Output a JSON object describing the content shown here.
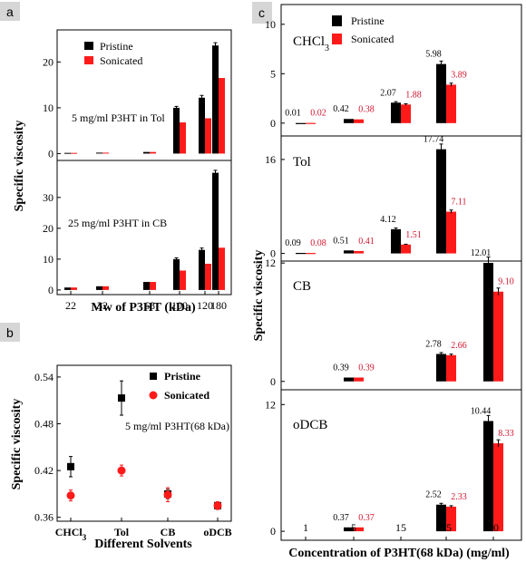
{
  "colors": {
    "pristine": "#000000",
    "sonicated": "#ff1a1a",
    "sonicated_label": "#d0142c",
    "badge_bg": "#d6d6d6"
  },
  "legend": {
    "pristine": "Pristine",
    "sonicated": "Sonicated"
  },
  "chart_data": [
    {
      "panel": "a",
      "type": "bar",
      "ylabel": "Specific viscosity",
      "xlabel": "Mw of P3HT (kDa)",
      "categories": [
        "22",
        "32",
        "68",
        "100",
        "120",
        "180"
      ],
      "subplots": [
        {
          "annotation": "5 mg/ml P3HT in Tol",
          "yticks": [
            "0",
            "10",
            "20"
          ],
          "ylim": [
            -1.5,
            27
          ],
          "series": [
            {
              "name": "Pristine",
              "values": [
                0.15,
                0.2,
                0.35,
                10,
                12.2,
                23.6
              ],
              "errors": [
                0,
                0,
                0,
                0.3,
                0.5,
                0.6
              ]
            },
            {
              "name": "Sonicated",
              "values": [
                0.15,
                0.2,
                0.35,
                6.8,
                7.7,
                16.5
              ],
              "errors": [
                0,
                0,
                0,
                0,
                0,
                0
              ]
            }
          ]
        },
        {
          "annotation": "25 mg/ml P3HT in CB",
          "yticks": [
            "0",
            "10",
            "20",
            "30"
          ],
          "ylim": [
            -1.5,
            42
          ],
          "series": [
            {
              "name": "Pristine",
              "values": [
                0.8,
                1.2,
                2.6,
                10,
                13,
                38
              ],
              "errors": [
                0,
                0,
                0,
                0.4,
                0.6,
                0.8
              ]
            },
            {
              "name": "Sonicated",
              "values": [
                0.8,
                1.2,
                2.6,
                6.3,
                8.5,
                13.7
              ],
              "errors": [
                0,
                0,
                0,
                0,
                0,
                0
              ]
            }
          ]
        }
      ]
    },
    {
      "panel": "b",
      "type": "scatter",
      "ylabel": "Specific viscosity",
      "xlabel": "Different Solvents",
      "annotation": "5 mg/ml P3HT(68 kDa)",
      "categories": [
        "CHCl3",
        "Tol",
        "CB",
        "oDCB"
      ],
      "yticks": [
        "0.36",
        "0.42",
        "0.48",
        "0.54"
      ],
      "ylim": [
        0.355,
        0.555
      ],
      "series": [
        {
          "name": "Pristine",
          "values": [
            0.425,
            0.513,
            0.39,
            0.375
          ],
          "errors": [
            0.013,
            0.022,
            0.006,
            0.004
          ]
        },
        {
          "name": "Sonicated",
          "values": [
            0.388,
            0.42,
            0.389,
            0.375
          ],
          "errors": [
            0.007,
            0.007,
            0.009,
            0.005
          ]
        }
      ]
    },
    {
      "panel": "c",
      "type": "bar",
      "ylabel": "Specific viscosity",
      "xlabel": "Concentration of P3HT(68 kDa) (mg/ml)",
      "categories": [
        "1",
        "5",
        "15",
        "25",
        "50"
      ],
      "subplots": [
        {
          "solvent": "CHCl3",
          "yticks": [
            "0",
            "5",
            "10"
          ],
          "ylim": [
            -1.3,
            12
          ],
          "series": [
            {
              "name": "Pristine",
              "values": [
                0.01,
                0.42,
                2.07,
                5.98,
                null
              ],
              "labels": [
                "0.01",
                "0.42",
                "2.07",
                "5.98",
                ""
              ]
            },
            {
              "name": "Sonicated",
              "values": [
                0.02,
                0.38,
                1.88,
                3.89,
                null
              ],
              "labels": [
                "0.02",
                "0.38",
                "1.88",
                "3.89",
                ""
              ]
            }
          ]
        },
        {
          "solvent": "Tol",
          "yticks": [
            "0",
            "16"
          ],
          "ylim": [
            -1.3,
            20
          ],
          "series": [
            {
              "name": "Pristine",
              "values": [
                0.09,
                0.51,
                4.12,
                17.74,
                null
              ],
              "labels": [
                "0.09",
                "0.51",
                "4.12",
                "17.74",
                ""
              ]
            },
            {
              "name": "Sonicated",
              "values": [
                0.08,
                0.41,
                1.51,
                7.11,
                null
              ],
              "labels": [
                "0.08",
                "0.41",
                "1.51",
                "7.11",
                ""
              ]
            }
          ]
        },
        {
          "solvent": "CB",
          "yticks": [
            "0",
            "12"
          ],
          "ylim": [
            -0.85,
            12.2
          ],
          "series": [
            {
              "name": "Pristine",
              "values": [
                null,
                0.39,
                null,
                2.78,
                12.01
              ],
              "labels": [
                "",
                "0.39",
                "",
                "2.78",
                "12.01"
              ]
            },
            {
              "name": "Sonicated",
              "values": [
                null,
                0.39,
                null,
                2.66,
                9.1
              ],
              "labels": [
                "",
                "0.39",
                "",
                "2.66",
                "9.10"
              ]
            }
          ]
        },
        {
          "solvent": "oDCB",
          "yticks": [
            "0",
            "12"
          ],
          "ylim": [
            -0.85,
            13.4
          ],
          "series": [
            {
              "name": "Pristine",
              "values": [
                null,
                0.37,
                null,
                2.52,
                10.44
              ],
              "labels": [
                "",
                "0.37",
                "",
                "2.52",
                "10.44"
              ]
            },
            {
              "name": "Sonicated",
              "values": [
                null,
                0.37,
                null,
                2.33,
                8.33
              ],
              "labels": [
                "",
                "0.37",
                "",
                "2.33",
                "8.33"
              ]
            }
          ]
        }
      ]
    }
  ]
}
